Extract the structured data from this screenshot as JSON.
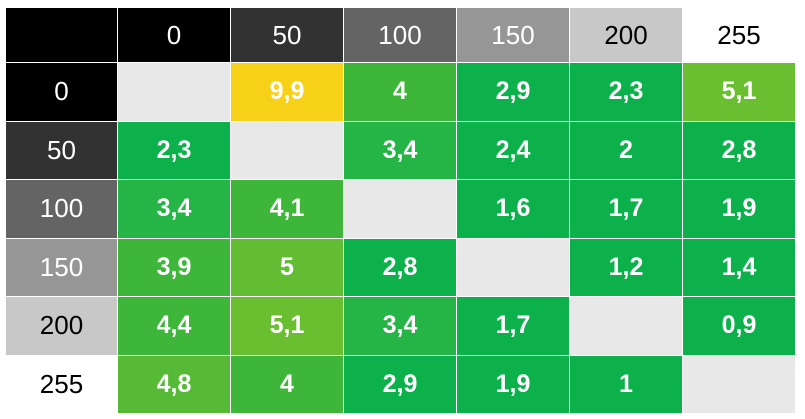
{
  "chart_data": {
    "type": "heatmap",
    "column_labels": [
      "0",
      "50",
      "100",
      "150",
      "200",
      "255"
    ],
    "row_labels": [
      "0",
      "50",
      "100",
      "150",
      "200",
      "255"
    ],
    "header_colors": [
      "#000000",
      "#323232",
      "#646464",
      "#969696",
      "#c8c8c8",
      "#ffffff"
    ],
    "header_text_colors": [
      "#ffffff",
      "#ffffff",
      "#ffffff",
      "#ffffff",
      "#000000",
      "#000000"
    ],
    "cells": [
      [
        null,
        "9,9",
        "4",
        "2,9",
        "2,3",
        "5,1"
      ],
      [
        "2,3",
        null,
        "3,4",
        "2,4",
        "2",
        "2,8"
      ],
      [
        "3,4",
        "4,1",
        null,
        "1,6",
        "1,7",
        "1,9"
      ],
      [
        "3,9",
        "5",
        "2,8",
        null,
        "1,2",
        "1,4"
      ],
      [
        "4,4",
        "5,1",
        "3,4",
        "1,7",
        null,
        "0,9"
      ],
      [
        "4,8",
        "4",
        "2,9",
        "1,9",
        "1",
        null
      ]
    ],
    "cell_colors": [
      [
        "#e8e8e8",
        "#f7d117",
        "#3db63a",
        "#0db14b",
        "#0db14b",
        "#6abf30"
      ],
      [
        "#0db14b",
        "#e8e8e8",
        "#25b446",
        "#0db14b",
        "#0db14b",
        "#0db14b"
      ],
      [
        "#25b446",
        "#3db63a",
        "#e8e8e8",
        "#0db14b",
        "#0db14b",
        "#0db14b"
      ],
      [
        "#3db63a",
        "#62bd33",
        "#0db14b",
        "#e8e8e8",
        "#0db14b",
        "#0db14b"
      ],
      [
        "#3db63a",
        "#6abf30",
        "#25b446",
        "#0db14b",
        "#e8e8e8",
        "#0db14b"
      ],
      [
        "#56ba36",
        "#3db63a",
        "#0db14b",
        "#0db14b",
        "#0db14b",
        "#e8e8e8"
      ]
    ],
    "diagonal_color": "#e8e8e8"
  }
}
